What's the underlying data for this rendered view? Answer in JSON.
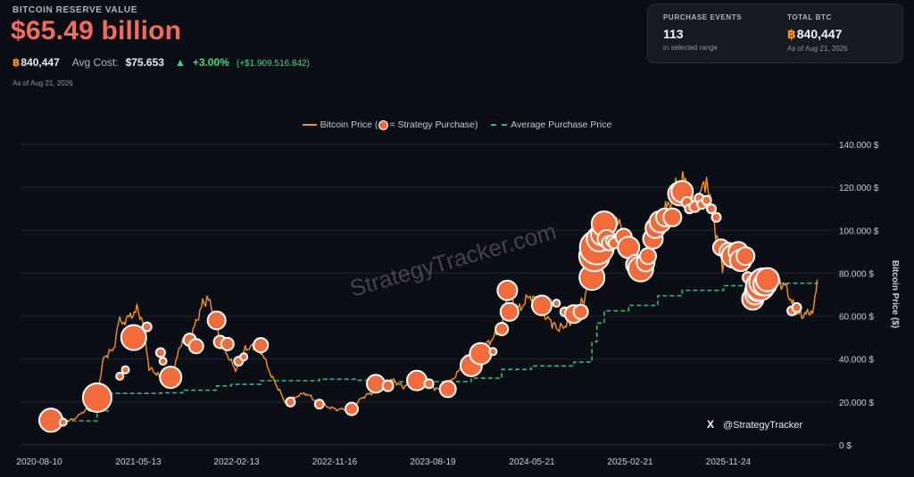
{
  "header": {
    "label": "BITCOIN RESERVE VALUE",
    "value": "$65.49 billion",
    "btc_glyph": "฿",
    "btc_amount": "840,447",
    "avg_cost_label": "Avg Cost:",
    "avg_cost_value": "$75.653",
    "change_arrow": "▲",
    "change_pct": "+3.00%",
    "change_abs": "(+$1.909.516.842)",
    "as_of": "As of Aug 21, 2026"
  },
  "panel": {
    "events_label": "PURCHASE EVENTS",
    "events_value": "113",
    "events_sub": "in selected range",
    "total_label": "TOTAL BTC",
    "total_glyph": "฿",
    "total_value": "840,447",
    "total_sub": "As of Aug 21, 2026"
  },
  "legend": {
    "price_label_before": "Bitcoin Price (",
    "price_label_after": " = Strategy Purchase)",
    "avg_label": "Average Purchase Price"
  },
  "watermark": "StrategyTracker.com",
  "social": {
    "icon": "x-logo-icon",
    "x_glyph": "X",
    "handle": "@StrategyTracker"
  },
  "colors": {
    "background": "#0b0e14",
    "price_line": "#f7931a",
    "avg_line": "#2eb872",
    "bubble": "#f26b3a",
    "bubble_stroke": "#ffffff",
    "headline": "#f26b5b",
    "positive": "#3ddc84"
  },
  "chart_data": {
    "type": "line",
    "x_tick_labels": [
      "2020-08-10",
      "2021-05-13",
      "2022-02-13",
      "2022-11-16",
      "2023-08-19",
      "2024-05-21",
      "2025-02-21",
      "2025-11-24"
    ],
    "y_tick_labels": [
      "0 $",
      "20.000 $",
      "40.000 $",
      "60.000 $",
      "80.000 $",
      "100.000 $",
      "120.000 $",
      "140.000 $"
    ],
    "y_ticks": [
      0,
      20000,
      40000,
      60000,
      80000,
      100000,
      120000,
      140000
    ],
    "ylabel": "Bitcoin Price ($)",
    "x_range": [
      "2020-08-10",
      "2026-08-21"
    ],
    "ylim": [
      0,
      140000
    ],
    "grid": true,
    "legend_position": "top-center",
    "series": [
      {
        "name": "Bitcoin Price (● = Strategy Purchase)",
        "style": "line",
        "points": [
          [
            "2020-08-10",
            11500
          ],
          [
            "2020-09-15",
            10500
          ],
          [
            "2020-10-20",
            12500
          ],
          [
            "2020-11-15",
            16000
          ],
          [
            "2020-12-21",
            23500
          ],
          [
            "2021-01-08",
            40000
          ],
          [
            "2021-02-10",
            46000
          ],
          [
            "2021-02-20",
            57000
          ],
          [
            "2021-03-15",
            58000
          ],
          [
            "2021-04-14",
            63500
          ],
          [
            "2021-05-01",
            57000
          ],
          [
            "2021-05-19",
            36000
          ],
          [
            "2021-06-21",
            31500
          ],
          [
            "2021-07-20",
            30000
          ],
          [
            "2021-08-23",
            49500
          ],
          [
            "2021-09-07",
            46000
          ],
          [
            "2021-10-20",
            66000
          ],
          [
            "2021-11-10",
            68000
          ],
          [
            "2021-12-10",
            48000
          ],
          [
            "2022-01-22",
            35000
          ],
          [
            "2022-02-15",
            44000
          ],
          [
            "2022-03-28",
            47000
          ],
          [
            "2022-05-09",
            31000
          ],
          [
            "2022-06-18",
            19000
          ],
          [
            "2022-07-20",
            23000
          ],
          [
            "2022-08-15",
            24000
          ],
          [
            "2022-09-20",
            19000
          ],
          [
            "2022-11-09",
            16500
          ],
          [
            "2022-12-25",
            16800
          ],
          [
            "2023-01-20",
            22000
          ],
          [
            "2023-02-20",
            24500
          ],
          [
            "2023-03-17",
            27500
          ],
          [
            "2023-04-14",
            30500
          ],
          [
            "2023-05-20",
            27000
          ],
          [
            "2023-06-23",
            30500
          ],
          [
            "2023-08-17",
            26500
          ],
          [
            "2023-09-11",
            25200
          ],
          [
            "2023-10-24",
            34000
          ],
          [
            "2023-11-15",
            37000
          ],
          [
            "2023-12-08",
            44000
          ],
          [
            "2024-01-11",
            46500
          ],
          [
            "2024-02-26",
            54000
          ],
          [
            "2024-03-13",
            72000
          ],
          [
            "2024-04-13",
            63000
          ],
          [
            "2024-05-21",
            70000
          ],
          [
            "2024-06-25",
            61000
          ],
          [
            "2024-08-05",
            54000
          ],
          [
            "2024-09-10",
            57000
          ],
          [
            "2024-10-20",
            68000
          ],
          [
            "2024-11-11",
            88000
          ],
          [
            "2024-11-25",
            94000
          ],
          [
            "2024-12-17",
            106000
          ],
          [
            "2025-01-06",
            98000
          ],
          [
            "2025-01-21",
            106000
          ],
          [
            "2025-02-25",
            88000
          ],
          [
            "2025-04-08",
            77000
          ],
          [
            "2025-05-12",
            104000
          ],
          [
            "2025-06-10",
            109000
          ],
          [
            "2025-07-14",
            121000
          ],
          [
            "2025-08-14",
            124000
          ],
          [
            "2025-09-01",
            108000
          ],
          [
            "2025-10-06",
            125000
          ],
          [
            "2025-10-20",
            110000
          ],
          [
            "2025-11-21",
            84000
          ],
          [
            "2025-12-15",
            88000
          ],
          [
            "2026-01-20",
            90000
          ],
          [
            "2026-02-10",
            70000
          ],
          [
            "2026-03-15",
            74000
          ],
          [
            "2026-04-15",
            78000
          ],
          [
            "2026-05-20",
            74000
          ],
          [
            "2026-06-20",
            62000
          ],
          [
            "2026-07-15",
            60000
          ],
          [
            "2026-08-10",
            64000
          ],
          [
            "2026-08-20",
            77000
          ]
        ]
      },
      {
        "name": "Average Purchase Price",
        "style": "dashed-step",
        "points": [
          [
            "2020-08-10",
            11000
          ],
          [
            "2020-10-05",
            11200
          ],
          [
            "2020-12-21",
            15800
          ],
          [
            "2021-01-21",
            24000
          ],
          [
            "2021-06-21",
            24300
          ],
          [
            "2021-08-24",
            25500
          ],
          [
            "2021-11-29",
            27500
          ],
          [
            "2022-01-10",
            28200
          ],
          [
            "2022-04-05",
            29900
          ],
          [
            "2022-09-20",
            30600
          ],
          [
            "2023-01-05",
            30100
          ],
          [
            "2023-04-05",
            29400
          ],
          [
            "2023-08-01",
            29500
          ],
          [
            "2023-11-30",
            31100
          ],
          [
            "2024-02-26",
            35200
          ],
          [
            "2024-05-21",
            36800
          ],
          [
            "2024-09-20",
            38600
          ],
          [
            "2024-11-11",
            48000
          ],
          [
            "2024-11-25",
            56800
          ],
          [
            "2024-12-16",
            62500
          ],
          [
            "2025-02-24",
            65000
          ],
          [
            "2025-05-19",
            69500
          ],
          [
            "2025-07-28",
            72000
          ],
          [
            "2025-11-24",
            74200
          ],
          [
            "2026-03-30",
            75300
          ],
          [
            "2026-08-20",
            75650
          ]
        ]
      }
    ],
    "purchases": [
      {
        "date": "2020-08-10",
        "price": 11500,
        "size": 13
      },
      {
        "date": "2020-09-14",
        "price": 10600,
        "size": 4
      },
      {
        "date": "2020-12-04",
        "price": 18000,
        "size": 5
      },
      {
        "date": "2020-12-21",
        "price": 22000,
        "size": 16
      },
      {
        "date": "2021-02-24",
        "price": 32000,
        "size": 4
      },
      {
        "date": "2021-03-12",
        "price": 35000,
        "size": 4
      },
      {
        "date": "2021-04-05",
        "price": 50000,
        "size": 14
      },
      {
        "date": "2021-05-13",
        "price": 55000,
        "size": 5
      },
      {
        "date": "2021-06-21",
        "price": 43000,
        "size": 5
      },
      {
        "date": "2021-06-28",
        "price": 39000,
        "size": 4
      },
      {
        "date": "2021-07-20",
        "price": 31500,
        "size": 12
      },
      {
        "date": "2021-09-13",
        "price": 49000,
        "size": 7
      },
      {
        "date": "2021-10-01",
        "price": 46000,
        "size": 8
      },
      {
        "date": "2021-11-29",
        "price": 58000,
        "size": 10
      },
      {
        "date": "2021-12-09",
        "price": 48000,
        "size": 7
      },
      {
        "date": "2021-12-30",
        "price": 47000,
        "size": 7
      },
      {
        "date": "2022-01-31",
        "price": 39000,
        "size": 5
      },
      {
        "date": "2022-02-15",
        "price": 41000,
        "size": 4
      },
      {
        "date": "2022-04-05",
        "price": 46500,
        "size": 8
      },
      {
        "date": "2022-06-29",
        "price": 20000,
        "size": 5
      },
      {
        "date": "2022-09-20",
        "price": 19000,
        "size": 5
      },
      {
        "date": "2022-12-22",
        "price": 16800,
        "size": 7
      },
      {
        "date": "2023-03-01",
        "price": 28500,
        "size": 10
      },
      {
        "date": "2023-04-05",
        "price": 27500,
        "size": 6
      },
      {
        "date": "2023-06-27",
        "price": 30000,
        "size": 11
      },
      {
        "date": "2023-08-01",
        "price": 28500,
        "size": 5
      },
      {
        "date": "2023-09-24",
        "price": 26000,
        "size": 9
      },
      {
        "date": "2023-11-30",
        "price": 37000,
        "size": 12
      },
      {
        "date": "2023-12-27",
        "price": 42500,
        "size": 12
      },
      {
        "date": "2024-02-01",
        "price": 43500,
        "size": 4
      },
      {
        "date": "2024-02-26",
        "price": 54000,
        "size": 7
      },
      {
        "date": "2024-03-13",
        "price": 72000,
        "size": 11
      },
      {
        "date": "2024-03-19",
        "price": 62000,
        "size": 10
      },
      {
        "date": "2024-06-20",
        "price": 65000,
        "size": 11
      },
      {
        "date": "2024-08-01",
        "price": 66000,
        "size": 4
      },
      {
        "date": "2024-08-25",
        "price": 62000,
        "size": 5
      },
      {
        "date": "2024-09-20",
        "price": 61000,
        "size": 10
      },
      {
        "date": "2024-10-10",
        "price": 62000,
        "size": 8
      },
      {
        "date": "2024-11-11",
        "price": 78000,
        "size": 14
      },
      {
        "date": "2024-11-18",
        "price": 88000,
        "size": 17
      },
      {
        "date": "2024-11-25",
        "price": 92000,
        "size": 19
      },
      {
        "date": "2024-12-02",
        "price": 96000,
        "size": 14
      },
      {
        "date": "2024-12-09",
        "price": 98000,
        "size": 12
      },
      {
        "date": "2024-12-16",
        "price": 103000,
        "size": 14
      },
      {
        "date": "2024-12-23",
        "price": 96000,
        "size": 10
      },
      {
        "date": "2024-12-30",
        "price": 94000,
        "size": 8
      },
      {
        "date": "2025-01-06",
        "price": 95000,
        "size": 6
      },
      {
        "date": "2025-01-13",
        "price": 94000,
        "size": 6
      },
      {
        "date": "2025-02-10",
        "price": 97000,
        "size": 9
      },
      {
        "date": "2025-02-24",
        "price": 92000,
        "size": 12
      },
      {
        "date": "2025-03-17",
        "price": 84000,
        "size": 11
      },
      {
        "date": "2025-03-31",
        "price": 82000,
        "size": 14
      },
      {
        "date": "2025-04-14",
        "price": 85000,
        "size": 10
      },
      {
        "date": "2025-04-21",
        "price": 88000,
        "size": 9
      },
      {
        "date": "2025-05-05",
        "price": 96000,
        "size": 11
      },
      {
        "date": "2025-05-12",
        "price": 101000,
        "size": 11
      },
      {
        "date": "2025-05-26",
        "price": 104000,
        "size": 12
      },
      {
        "date": "2025-06-09",
        "price": 106000,
        "size": 10
      },
      {
        "date": "2025-06-30",
        "price": 106000,
        "size": 10
      },
      {
        "date": "2025-07-21",
        "price": 117000,
        "size": 13
      },
      {
        "date": "2025-07-28",
        "price": 118000,
        "size": 12
      },
      {
        "date": "2025-08-11",
        "price": 113000,
        "size": 6
      },
      {
        "date": "2025-08-18",
        "price": 110000,
        "size": 5
      },
      {
        "date": "2025-09-02",
        "price": 111000,
        "size": 6
      },
      {
        "date": "2025-09-15",
        "price": 115000,
        "size": 5
      },
      {
        "date": "2025-09-22",
        "price": 112000,
        "size": 5
      },
      {
        "date": "2025-10-06",
        "price": 114000,
        "size": 5
      },
      {
        "date": "2025-10-20",
        "price": 110000,
        "size": 5
      },
      {
        "date": "2025-11-03",
        "price": 106000,
        "size": 5
      },
      {
        "date": "2025-11-17",
        "price": 92000,
        "size": 9
      },
      {
        "date": "2025-12-08",
        "price": 90000,
        "size": 10
      },
      {
        "date": "2025-12-22",
        "price": 88000,
        "size": 13
      },
      {
        "date": "2026-01-05",
        "price": 90000,
        "size": 11
      },
      {
        "date": "2026-01-12",
        "price": 86000,
        "size": 12
      },
      {
        "date": "2026-01-26",
        "price": 88000,
        "size": 10
      },
      {
        "date": "2026-02-02",
        "price": 78000,
        "size": 6
      },
      {
        "date": "2026-02-09",
        "price": 72000,
        "size": 6
      },
      {
        "date": "2026-02-16",
        "price": 68000,
        "size": 12
      },
      {
        "date": "2026-02-23",
        "price": 70000,
        "size": 11
      },
      {
        "date": "2026-03-02",
        "price": 72000,
        "size": 12
      },
      {
        "date": "2026-03-09",
        "price": 74000,
        "size": 16
      },
      {
        "date": "2026-03-16",
        "price": 76000,
        "size": 15
      },
      {
        "date": "2026-03-23",
        "price": 75000,
        "size": 13
      },
      {
        "date": "2026-03-30",
        "price": 77000,
        "size": 13
      },
      {
        "date": "2026-06-08",
        "price": 62500,
        "size": 5
      },
      {
        "date": "2026-06-22",
        "price": 64000,
        "size": 5
      }
    ]
  }
}
